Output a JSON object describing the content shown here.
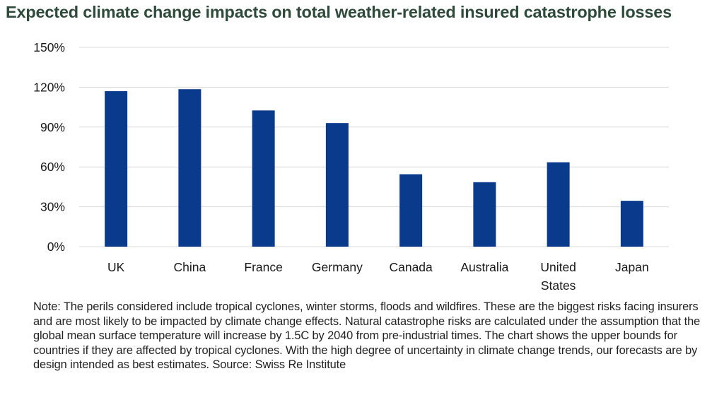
{
  "title": "Expected climate change impacts on total weather-related insured catastrophe losses",
  "note": "Note: The perils considered include tropical cyclones, winter storms, floods and wildfires. These are the biggest risks facing insurers and are most likely to be impacted by climate change effects. Natural catastrophe risks are calculated under the assumption that the global mean surface temperature will increase by 1.5C by 2040 from pre-industrial times. The chart shows the upper bounds for countries if they are affected by tropical cyclones. With the high degree of uncertainty in climate change trends, our forecasts are by design intended as best estimates. Source: Swiss Re Institute",
  "colors": {
    "bar": "#0a3a8c",
    "grid": "#d9d9d9",
    "title": "#2e4a3a"
  },
  "chart_data": {
    "type": "bar",
    "categories": [
      "UK",
      "China",
      "France",
      "Germany",
      "Canada",
      "Australia",
      "United States",
      "Japan"
    ],
    "category_lines": [
      [
        "UK"
      ],
      [
        "China"
      ],
      [
        "France"
      ],
      [
        "Germany"
      ],
      [
        "Canada"
      ],
      [
        "Australia"
      ],
      [
        "United",
        "States"
      ],
      [
        "Japan"
      ]
    ],
    "values": [
      117,
      118.5,
      102.5,
      93,
      54.5,
      48.5,
      63.5,
      34.5
    ],
    "yticks": [
      "0%",
      "30%",
      "60%",
      "90%",
      "120%",
      "150%"
    ],
    "ytick_values": [
      0,
      30,
      60,
      90,
      120,
      150
    ],
    "ylim": [
      0,
      150
    ],
    "grid": true,
    "unit": "%"
  }
}
